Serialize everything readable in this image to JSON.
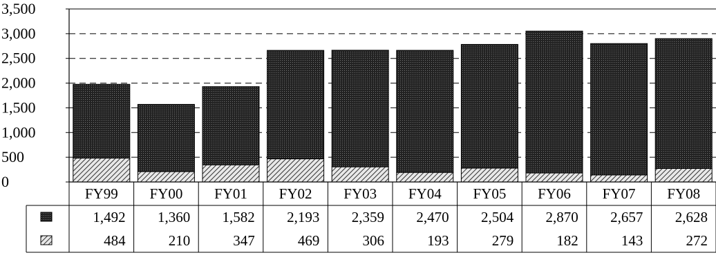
{
  "chart_data": {
    "type": "bar",
    "stacked": true,
    "categories": [
      "FY99",
      "FY00",
      "FY01",
      "FY02",
      "FY03",
      "FY04",
      "FY05",
      "FY06",
      "FY07",
      "FY08"
    ],
    "series": [
      {
        "values": [
          484,
          210,
          347,
          469,
          306,
          193,
          279,
          182,
          143,
          272
        ],
        "pattern": "diagonal-hatch",
        "color": "#555555"
      },
      {
        "values": [
          1492,
          1360,
          1582,
          2193,
          2359,
          2470,
          2504,
          2870,
          2657,
          2628
        ],
        "pattern": "dark-dots",
        "color": "#1a1a1a"
      }
    ],
    "yticks": [
      "3,500",
      "3,000",
      "2,500",
      "2,000",
      "1,500",
      "1,000",
      "500",
      "0"
    ],
    "ylim": [
      0,
      3500
    ],
    "grid": "dashed-horizontal",
    "table_rows": [
      {
        "pattern": "dark-dots",
        "values": [
          "1,492",
          "1,360",
          "1,582",
          "2,193",
          "2,359",
          "2,470",
          "2,504",
          "2,870",
          "2,657",
          "2,628"
        ]
      },
      {
        "pattern": "diagonal-hatch",
        "values": [
          "484",
          "210",
          "347",
          "469",
          "306",
          "193",
          "279",
          "182",
          "143",
          "272"
        ]
      }
    ]
  }
}
